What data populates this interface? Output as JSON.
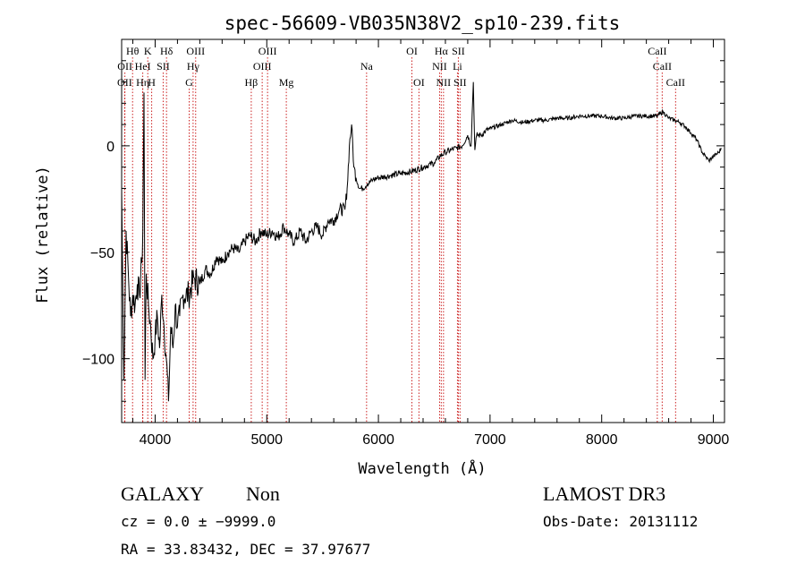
{
  "chart_data": {
    "type": "line",
    "title": "spec-56609-VB035N38V2_sp10-239.fits",
    "xlabel": "Wavelength (Å)",
    "ylabel": "Flux (relative)",
    "xlim": [
      3700,
      9100
    ],
    "ylim": [
      -130,
      50
    ],
    "xticks": [
      4000,
      5000,
      6000,
      7000,
      8000,
      9000
    ],
    "xtick_labels": [
      "4000",
      "5000",
      "6000",
      "7000",
      "8000",
      "9000"
    ],
    "yticks": [
      -100,
      -50,
      0
    ],
    "ytick_labels": [
      "−100",
      "−50",
      "0"
    ],
    "grid": false,
    "legend": "none",
    "line_color": "#000000",
    "marker_color": "#cc2222",
    "series": [
      {
        "x": [
          3700,
          3720,
          3740,
          3760,
          3780,
          3800,
          3820,
          3840,
          3860,
          3880,
          3890,
          3900,
          3910,
          3920,
          3940,
          3960,
          3980,
          4000,
          4020,
          4040,
          4060,
          4080,
          4100,
          4120,
          4140,
          4160,
          4180,
          4200,
          4220,
          4250,
          4300,
          4350,
          4400,
          4450,
          4500,
          4550,
          4600,
          4650,
          4700,
          4750,
          4800,
          4850,
          4900,
          4950,
          5000,
          5050,
          5100,
          5150,
          5200,
          5250,
          5300,
          5350,
          5400,
          5450,
          5500,
          5550,
          5600,
          5650,
          5700,
          5720,
          5740,
          5760,
          5780,
          5800,
          5830,
          5860,
          5900,
          5950,
          6000,
          6100,
          6200,
          6300,
          6400,
          6500,
          6550,
          6600,
          6650,
          6700,
          6750,
          6800,
          6830,
          6850,
          6864,
          6880,
          6920,
          6960,
          7000,
          7100,
          7200,
          7300,
          7400,
          7500,
          7600,
          7700,
          7800,
          7900,
          8000,
          8100,
          8200,
          8300,
          8400,
          8500,
          8550,
          8600,
          8650,
          8700,
          8750,
          8800,
          8850,
          8900,
          8930,
          8960,
          9000,
          9050,
          9070
        ],
        "y": [
          -20,
          -110,
          -40,
          -60,
          -80,
          -70,
          -75,
          -65,
          -70,
          -55,
          -40,
          25,
          -110,
          -60,
          -75,
          -85,
          -100,
          -90,
          -80,
          -95,
          -70,
          -85,
          -100,
          -120,
          -85,
          -95,
          -75,
          -85,
          -80,
          -70,
          -70,
          -62,
          -65,
          -58,
          -60,
          -52,
          -55,
          -50,
          -48,
          -50,
          -45,
          -42,
          -45,
          -40,
          -42,
          -40,
          -43,
          -38,
          -42,
          -45,
          -40,
          -45,
          -40,
          -38,
          -42,
          -35,
          -35,
          -30,
          -30,
          -20,
          0,
          10,
          -10,
          -15,
          -20,
          -20,
          -18,
          -16,
          -15,
          -14,
          -13,
          -12,
          -10,
          -8,
          -5,
          -3,
          -2,
          -1,
          0,
          5,
          0,
          30,
          -2,
          5,
          5,
          7,
          8,
          10,
          12,
          11,
          12,
          12,
          13,
          13,
          14,
          14,
          14,
          13,
          13,
          14,
          14,
          14,
          16,
          13,
          12,
          11,
          9,
          6,
          3,
          -3,
          -5,
          -7,
          -5,
          -3,
          -1
        ]
      }
    ],
    "lines": [
      {
        "name": "OII",
        "x": 3727,
        "row": 3
      },
      {
        "name": "OII",
        "x": 3729,
        "row": 2
      },
      {
        "name": "Hθ",
        "x": 3798,
        "row": 1
      },
      {
        "name": "Hη",
        "x": 3889,
        "row": 3
      },
      {
        "name": "HeI",
        "x": 3889,
        "row": 2
      },
      {
        "name": "K",
        "x": 3934,
        "row": 1
      },
      {
        "name": "H",
        "x": 3969,
        "row": 3
      },
      {
        "name": "Hδ",
        "x": 4102,
        "row": 1
      },
      {
        "name": "SII",
        "x": 4072,
        "row": 2
      },
      {
        "name": "G",
        "x": 4305,
        "row": 3
      },
      {
        "name": "Hγ",
        "x": 4340,
        "row": 2
      },
      {
        "name": "OIII",
        "x": 4363,
        "row": 1
      },
      {
        "name": "Hβ",
        "x": 4861,
        "row": 3
      },
      {
        "name": "OIII",
        "x": 4959,
        "row": 2
      },
      {
        "name": "OIII",
        "x": 5007,
        "row": 1
      },
      {
        "name": "Mg",
        "x": 5175,
        "row": 3
      },
      {
        "name": "Na",
        "x": 5894,
        "row": 2
      },
      {
        "name": "OI",
        "x": 6300,
        "row": 1
      },
      {
        "name": "OI",
        "x": 6363,
        "row": 3
      },
      {
        "name": "NII",
        "x": 6548,
        "row": 2
      },
      {
        "name": "Hα",
        "x": 6563,
        "row": 1
      },
      {
        "name": "NII",
        "x": 6583,
        "row": 3
      },
      {
        "name": "SII",
        "x": 6716,
        "row": 1
      },
      {
        "name": "Li",
        "x": 6708,
        "row": 2
      },
      {
        "name": "SII",
        "x": 6731,
        "row": 3
      },
      {
        "name": "CaII",
        "x": 8498,
        "row": 1
      },
      {
        "name": "CaII",
        "x": 8542,
        "row": 2
      },
      {
        "name": "CaII",
        "x": 8662,
        "row": 3
      }
    ]
  },
  "footer": {
    "object_class": "GALAXY",
    "subclass": "Non",
    "survey": "LAMOST DR3",
    "redshift": "cz = 0.0 ± −9999.0",
    "obs_date": "Obs-Date: 20131112",
    "coords": "RA =  33.83432, DEC =  37.97677"
  }
}
